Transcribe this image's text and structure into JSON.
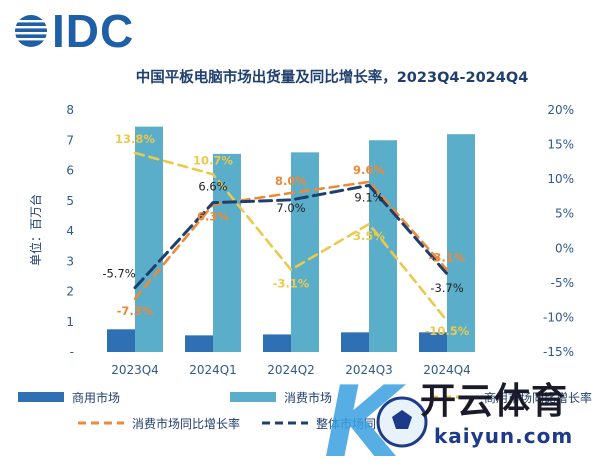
{
  "logo": {
    "text": "IDC"
  },
  "watermark": {
    "cn": "开云体育",
    "en": "kaiyun.com"
  },
  "chart_data": {
    "type": "bar",
    "title": "中国平板电脑市场出货量及同比增长率，2023Q4-2024Q4",
    "ylabel": "单位：百万台",
    "categories": [
      "2023Q4",
      "2024Q1",
      "2024Q2",
      "2024Q3",
      "2024Q4"
    ],
    "ylim": [
      0,
      8
    ],
    "y_ticks": [
      "-",
      "1",
      "2",
      "3",
      "4",
      "5",
      "6",
      "7",
      "8"
    ],
    "y2lim": [
      -15,
      20
    ],
    "y2_ticks": [
      "-15%",
      "-10%",
      "-5%",
      "0%",
      "5%",
      "10%",
      "15%",
      "20%"
    ],
    "series": [
      {
        "name": "商用市场",
        "kind": "bar",
        "axis": "left",
        "color": "#2f6fb3",
        "values": [
          0.75,
          0.55,
          0.58,
          0.65,
          0.65
        ]
      },
      {
        "name": "消费市场",
        "kind": "bar",
        "axis": "left",
        "color": "#5aaec9",
        "values": [
          7.45,
          6.55,
          6.6,
          7.0,
          7.2
        ]
      },
      {
        "name": "商用市场同比增长率",
        "kind": "line",
        "axis": "right",
        "color": "#ecc94b",
        "values": [
          13.8,
          10.7,
          -3.1,
          3.5,
          -10.5
        ],
        "labels": [
          "13.8%",
          "10.7%",
          "-3.1%",
          "3.5%",
          "-10.5%"
        ]
      },
      {
        "name": "消费市场同比增长率",
        "kind": "line",
        "axis": "right",
        "color": "#ed8a3a",
        "values": [
          -7.3,
          6.3,
          8.0,
          9.6,
          -3.1
        ],
        "labels": [
          "-7.3%",
          "6.3%",
          "8.0%",
          "9.6%",
          "-3.1%"
        ]
      },
      {
        "name": "整体市场同比增长率",
        "kind": "line",
        "axis": "right",
        "color": "#1f3f6e",
        "values": [
          -5.7,
          6.6,
          7.0,
          9.1,
          -3.7
        ],
        "labels": [
          "-5.7%",
          "6.6%",
          "7.0%",
          "9.1%",
          "-3.7%"
        ]
      }
    ],
    "legend": "bottom",
    "grid": false
  }
}
